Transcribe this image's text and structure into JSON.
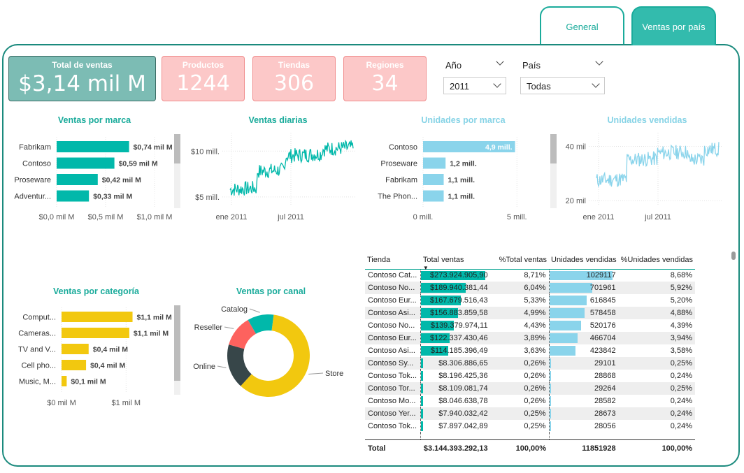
{
  "tabs": {
    "general": "General",
    "ventas_por_pais": "Ventas por país"
  },
  "kpis": {
    "total": {
      "label": "Total de ventas",
      "value": "$3,14 mil M"
    },
    "productos": {
      "label": "Productos",
      "value": "1244"
    },
    "tiendas": {
      "label": "Tiendas",
      "value": "306"
    },
    "regiones": {
      "label": "Regiones",
      "value": "34"
    }
  },
  "slicers": {
    "anio": {
      "label": "Año",
      "value": "2011"
    },
    "pais": {
      "label": "País",
      "value": "Todas"
    }
  },
  "colors": {
    "teal": "#01b8aa",
    "light_blue": "#8ad4eb",
    "yellow": "#f2c80f",
    "pink": "#fcc8c8",
    "red": "#fd625e",
    "dark": "#374649"
  },
  "chart_data": [
    {
      "id": "ventas_por_marca",
      "type": "bar",
      "orientation": "horizontal",
      "title": "Ventas por marca",
      "categories": [
        "Fabrikam",
        "Contoso",
        "Proseware",
        "Adventur..."
      ],
      "values": [
        0.74,
        0.59,
        0.42,
        0.33
      ],
      "data_labels": [
        "$0,74 mil M",
        "$0,59 mil M",
        "$0,42 mil M",
        "$0,33 mil M"
      ],
      "xlim": [
        0,
        1.1
      ],
      "x_ticks": [
        0,
        0.5,
        1.0
      ],
      "x_tick_labels": [
        "$0,0 mil M",
        "$0,5 mil M",
        "$1,0 mil M"
      ]
    },
    {
      "id": "ventas_diarias",
      "type": "line",
      "title": "Ventas diarias",
      "x_tick_labels": [
        "ene 2011",
        "jul 2011"
      ],
      "y_tick_labels": [
        "$10 mill.",
        "$5 mill."
      ],
      "ylim": [
        4,
        12
      ]
    },
    {
      "id": "unidades_por_marca",
      "type": "bar",
      "orientation": "horizontal",
      "title": "Unidades por marca",
      "categories": [
        "Contoso",
        "Proseware",
        "Fabrikam",
        "The Phon..."
      ],
      "values": [
        4.9,
        1.2,
        1.1,
        1.1
      ],
      "data_labels": [
        "4,9 mill.",
        "1,2 mill.",
        "1,1 mill.",
        "1,1 mill."
      ],
      "xlim": [
        0,
        5.4
      ],
      "x_ticks": [
        0,
        5
      ],
      "x_tick_labels": [
        "0 mill.",
        "5 mill."
      ]
    },
    {
      "id": "unidades_vendidas",
      "type": "line",
      "title": "Unidades vendidas",
      "x_tick_labels": [
        "ene 2011",
        "jul 2011"
      ],
      "y_tick_labels": [
        "40 mil",
        "20 mil"
      ],
      "ylim": [
        18,
        45
      ]
    },
    {
      "id": "ventas_por_categoria",
      "type": "bar",
      "orientation": "horizontal",
      "title": "Ventas por categoría",
      "categories": [
        "Comput...",
        "Cameras...",
        "TV and V...",
        "Cell pho...",
        "Music, M..."
      ],
      "values": [
        1.1,
        1.05,
        0.42,
        0.38,
        0.08
      ],
      "data_labels": [
        "$1,1 mil M",
        "$1,1 mil M",
        "$0,4 mil M",
        "$0,4 mil M",
        "$0,1 mil M"
      ],
      "xlim": [
        0,
        1.3
      ],
      "x_ticks": [
        0,
        1
      ],
      "x_tick_labels": [
        "$0 mil M",
        "$1 mil M"
      ]
    },
    {
      "id": "ventas_por_canal",
      "type": "pie",
      "variant": "donut",
      "title": "Ventas por canal",
      "categories": [
        "Store",
        "Online",
        "Reseller",
        "Catalog"
      ],
      "values": [
        0.58,
        0.17,
        0.12,
        0.1
      ]
    }
  ],
  "table": {
    "headers": [
      "Tienda",
      "Total ventas",
      "%Total ventas",
      "Unidades vendidas",
      "%Unidades vendidas"
    ],
    "rows": [
      [
        "Contoso Cat...",
        "$273.924.905,90",
        "8,71%",
        "1029117",
        "8,68%"
      ],
      [
        "Contoso No...",
        "$189.940.381,44",
        "6,04%",
        "701961",
        "5,92%"
      ],
      [
        "Contoso Eur...",
        "$167.679.516,43",
        "5,33%",
        "616845",
        "5,20%"
      ],
      [
        "Contoso Asi...",
        "$156.883.859,58",
        "4,99%",
        "578458",
        "4,88%"
      ],
      [
        "Contoso No...",
        "$139.379.974,11",
        "4,43%",
        "520176",
        "4,39%"
      ],
      [
        "Contoso Eur...",
        "$122.337.430,46",
        "3,89%",
        "466704",
        "3,94%"
      ],
      [
        "Contoso Asi...",
        "$114.185.396,49",
        "3,63%",
        "423842",
        "3,58%"
      ],
      [
        "Contoso Sy...",
        "$8.306.886,65",
        "0,26%",
        "29101",
        "0,25%"
      ],
      [
        "Contoso Tok...",
        "$8.196.425,36",
        "0,26%",
        "28868",
        "0,24%"
      ],
      [
        "Contoso Tor...",
        "$8.109.081,74",
        "0,26%",
        "29264",
        "0,25%"
      ],
      [
        "Contoso Mo...",
        "$8.046.638,78",
        "0,26%",
        "28582",
        "0,24%"
      ],
      [
        "Contoso Yer...",
        "$7.940.032,42",
        "0,25%",
        "28673",
        "0,24%"
      ],
      [
        "Contoso Tok...",
        "$7.897.042,89",
        "0,25%",
        "28056",
        "0,24%"
      ]
    ],
    "total": [
      "Total",
      "$3.144.393.292,13",
      "100,00%",
      "11851928",
      "100,00%"
    ]
  }
}
